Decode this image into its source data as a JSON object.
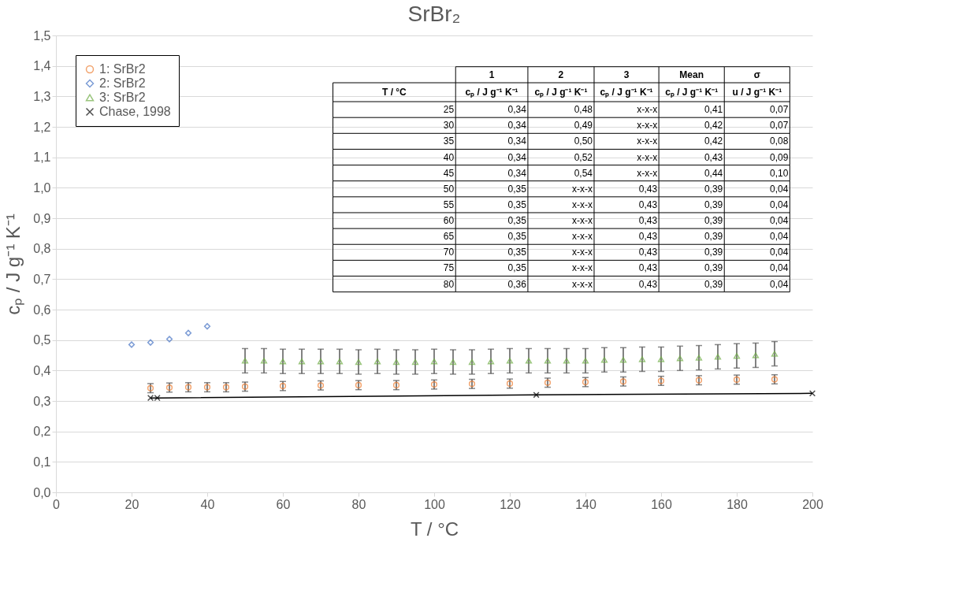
{
  "chart_data": {
    "type": "scatter",
    "title": "SrBr₂",
    "xlabel": "T / °C",
    "ylabel": "cₚ / J g⁻¹ K⁻¹",
    "xlim": [
      0,
      200
    ],
    "xticks": [
      0,
      20,
      40,
      60,
      80,
      100,
      120,
      140,
      160,
      180,
      200
    ],
    "ylim": [
      0,
      1.5
    ],
    "yticks": [
      {
        "value": 0,
        "label": "0,0"
      },
      {
        "value": 0.1,
        "label": "0,1"
      },
      {
        "value": 0.2,
        "label": "0,2"
      },
      {
        "value": 0.3,
        "label": "0,3"
      },
      {
        "value": 0.4,
        "label": "0,4"
      },
      {
        "value": 0.5,
        "label": "0,5"
      },
      {
        "value": 0.6,
        "label": "0,6"
      },
      {
        "value": 0.7,
        "label": "0,7"
      },
      {
        "value": 0.8,
        "label": "0,8"
      },
      {
        "value": 0.9,
        "label": "0,9"
      },
      {
        "value": 1.0,
        "label": "1,0"
      },
      {
        "value": 1.1,
        "label": "1,1"
      },
      {
        "value": 1.2,
        "label": "1,2"
      },
      {
        "value": 1.3,
        "label": "1,3"
      },
      {
        "value": 1.4,
        "label": "1,4"
      },
      {
        "value": 1.5,
        "label": "1,5"
      }
    ],
    "grid": "y",
    "legend": "top left",
    "series": [
      {
        "name": "1: SrBr2",
        "marker": "circle",
        "color": "#ed7d31",
        "x": [
          25,
          30,
          35,
          40,
          45,
          50,
          60,
          70,
          80,
          90,
          100,
          110,
          120,
          130,
          140,
          150,
          160,
          170,
          180,
          190
        ],
        "values": [
          0.342,
          0.344,
          0.345,
          0.345,
          0.345,
          0.347,
          0.349,
          0.351,
          0.352,
          0.352,
          0.354,
          0.356,
          0.357,
          0.36,
          0.362,
          0.364,
          0.366,
          0.368,
          0.37,
          0.371
        ],
        "errors": [
          0.015,
          0.015,
          0.015,
          0.015,
          0.015,
          0.015,
          0.015,
          0.015,
          0.015,
          0.015,
          0.015,
          0.015,
          0.015,
          0.015,
          0.015,
          0.015,
          0.015,
          0.015,
          0.015,
          0.015
        ]
      },
      {
        "name": "2: SrBr2",
        "marker": "diamond",
        "color": "#4472c4",
        "x": [
          20,
          25,
          30,
          35,
          40
        ],
        "values": [
          0.485,
          0.492,
          0.503,
          0.523,
          0.545
        ]
      },
      {
        "name": "3: SrBr2",
        "marker": "triangle",
        "color": "#70ad47",
        "x": [
          50,
          55,
          60,
          65,
          70,
          75,
          80,
          85,
          90,
          95,
          100,
          105,
          110,
          115,
          120,
          125,
          130,
          135,
          140,
          145,
          150,
          155,
          160,
          165,
          170,
          175,
          180,
          185,
          190
        ],
        "values": [
          0.432,
          0.432,
          0.43,
          0.43,
          0.43,
          0.43,
          0.428,
          0.43,
          0.428,
          0.428,
          0.43,
          0.428,
          0.428,
          0.43,
          0.432,
          0.432,
          0.432,
          0.432,
          0.432,
          0.435,
          0.435,
          0.437,
          0.437,
          0.44,
          0.442,
          0.445,
          0.448,
          0.45,
          0.455
        ],
        "errors": [
          0.04,
          0.04,
          0.04,
          0.04,
          0.04,
          0.04,
          0.04,
          0.04,
          0.04,
          0.04,
          0.04,
          0.04,
          0.04,
          0.04,
          0.04,
          0.04,
          0.04,
          0.04,
          0.04,
          0.04,
          0.04,
          0.04,
          0.04,
          0.04,
          0.04,
          0.04,
          0.04,
          0.04,
          0.04
        ]
      },
      {
        "name": "Chase, 1998",
        "type": "line",
        "marker": "cross",
        "color": "#000000",
        "x": [
          25,
          26.8,
          127,
          200
        ],
        "values": [
          0.31,
          0.31,
          0.32,
          0.325
        ]
      }
    ],
    "annotations": [
      "1",
      "2",
      "3",
      "Mean",
      "σ",
      "T / °C",
      "cₚ / J g⁻¹ K⁻¹",
      "cₚ / J g⁻¹ K⁻¹",
      "cₚ / J g⁻¹ K⁻¹",
      "cₚ / J g⁻¹ K⁻¹",
      "u / J g⁻¹ K⁻¹",
      "25",
      "0,34",
      "0,48",
      "x-x-x",
      "0,41",
      "0,07",
      "30",
      "0,34",
      "0,49",
      "x-x-x",
      "0,42",
      "0,07",
      "35",
      "0,34",
      "0,50",
      "x-x-x",
      "0,42",
      "0,08",
      "40",
      "0,34",
      "0,52",
      "x-x-x",
      "0,43",
      "0,09",
      "45",
      "0,34",
      "0,54",
      "x-x-x",
      "0,44",
      "0,10",
      "50",
      "0,35",
      "x-x-x",
      "0,43",
      "0,39",
      "0,04",
      "55",
      "0,35",
      "x-x-x",
      "0,43",
      "0,39",
      "0,04",
      "60",
      "0,35",
      "x-x-x",
      "0,43",
      "0,39",
      "0,04",
      "65",
      "0,35",
      "x-x-x",
      "0,43",
      "0,39",
      "0,04",
      "70",
      "0,35",
      "x-x-x",
      "0,43",
      "0,39",
      "0,04",
      "75",
      "0,35",
      "x-x-x",
      "0,43",
      "0,39",
      "0,04",
      "80",
      "0,36",
      "x-x-x",
      "0,43",
      "0,39",
      "0,04"
    ]
  }
}
